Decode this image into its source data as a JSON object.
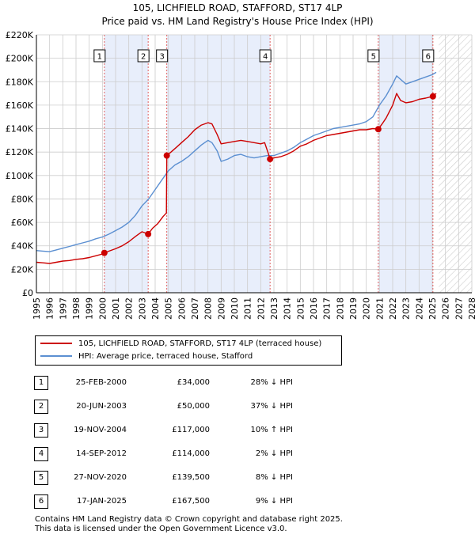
{
  "title_line1": "105, LICHFIELD ROAD, STAFFORD, ST17 4LP",
  "title_line2": "Price paid vs. HM Land Registry's House Price Index (HPI)",
  "colors": {
    "property_line": "#cc0000",
    "hpi_line": "#5b8fd1",
    "shade": "#e8eefb",
    "hatch": "#cccccc",
    "grid": "#cccccc",
    "marker_dash": "#e06060"
  },
  "legend": {
    "property_label": "105, LICHFIELD ROAD, STAFFORD, ST17 4LP (terraced house)",
    "hpi_label": "HPI: Average price, terraced house, Stafford"
  },
  "sales": [
    {
      "num": "1",
      "date": "25-FEB-2000",
      "price": "£34,000",
      "hpi": "28% ↓ HPI"
    },
    {
      "num": "2",
      "date": "20-JUN-2003",
      "price": "£50,000",
      "hpi": "37% ↓ HPI"
    },
    {
      "num": "3",
      "date": "19-NOV-2004",
      "price": "£117,000",
      "hpi": "10% ↑ HPI"
    },
    {
      "num": "4",
      "date": "14-SEP-2012",
      "price": "£114,000",
      "hpi": "2% ↓ HPI"
    },
    {
      "num": "5",
      "date": "27-NOV-2020",
      "price": "£139,500",
      "hpi": "8% ↓ HPI"
    },
    {
      "num": "6",
      "date": "17-JAN-2025",
      "price": "£167,500",
      "hpi": "9% ↓ HPI"
    }
  ],
  "footer": {
    "line1": "Contains HM Land Registry data © Crown copyright and database right 2025.",
    "line2": "This data is licensed under the Open Government Licence v3.0."
  },
  "chart_data": {
    "type": "line",
    "title": "105, LICHFIELD ROAD, STAFFORD, ST17 4LP",
    "subtitle": "Price paid vs. HM Land Registry's House Price Index (HPI)",
    "xlabel": "",
    "ylabel": "",
    "xlim": [
      1995,
      2028
    ],
    "ylim": [
      0,
      220000
    ],
    "x_ticks": [
      1995,
      1996,
      1997,
      1998,
      1999,
      2000,
      2001,
      2002,
      2003,
      2004,
      2005,
      2006,
      2007,
      2008,
      2009,
      2010,
      2011,
      2012,
      2013,
      2014,
      2015,
      2016,
      2017,
      2018,
      2019,
      2020,
      2021,
      2022,
      2023,
      2024,
      2025,
      2026,
      2027,
      2028
    ],
    "y_ticks": [
      {
        "value": 0,
        "label": "£0"
      },
      {
        "value": 20000,
        "label": "£20K"
      },
      {
        "value": 40000,
        "label": "£40K"
      },
      {
        "value": 60000,
        "label": "£60K"
      },
      {
        "value": 80000,
        "label": "£80K"
      },
      {
        "value": 100000,
        "label": "£100K"
      },
      {
        "value": 120000,
        "label": "£120K"
      },
      {
        "value": 140000,
        "label": "£140K"
      },
      {
        "value": 160000,
        "label": "£160K"
      },
      {
        "value": 180000,
        "label": "£180K"
      },
      {
        "value": 200000,
        "label": "£200K"
      },
      {
        "value": 220000,
        "label": "£220K"
      }
    ],
    "grid": true,
    "shaded_ranges": [
      [
        2000.15,
        2003.47
      ],
      [
        2004.88,
        2012.71
      ],
      [
        2020.91,
        2025.05
      ]
    ],
    "future_hatch_from": 2025.5,
    "sale_markers": [
      {
        "label": "1",
        "x": 2000.15,
        "y": 34000
      },
      {
        "label": "2",
        "x": 2003.47,
        "y": 50000
      },
      {
        "label": "3",
        "x": 2004.88,
        "y": 117000
      },
      {
        "label": "4",
        "x": 2012.71,
        "y": 114000
      },
      {
        "label": "5",
        "x": 2020.91,
        "y": 139500
      },
      {
        "label": "6",
        "x": 2025.05,
        "y": 167500
      }
    ],
    "series": [
      {
        "name": "105, LICHFIELD ROAD, STAFFORD, ST17 4LP (terraced house)",
        "x": [
          1995,
          1995.5,
          1996,
          1996.5,
          1997,
          1997.5,
          1998,
          1998.5,
          1999,
          1999.5,
          2000,
          2000.15,
          2000.5,
          2001,
          2001.5,
          2002,
          2002.5,
          2003,
          2003.47,
          2003.8,
          2004.2,
          2004.6,
          2004.85,
          2004.88,
          2005.2,
          2005.6,
          2006,
          2006.5,
          2007,
          2007.5,
          2008,
          2008.3,
          2008.7,
          2009,
          2009.5,
          2010,
          2010.5,
          2011,
          2011.5,
          2012,
          2012.3,
          2012.6,
          2012.71,
          2013,
          2013.5,
          2014,
          2014.5,
          2015,
          2015.5,
          2016,
          2016.5,
          2017,
          2017.5,
          2018,
          2018.5,
          2019,
          2019.5,
          2020,
          2020.5,
          2020.91,
          2021.2,
          2021.5,
          2022,
          2022.3,
          2022.6,
          2023,
          2023.5,
          2024,
          2024.5,
          2025.05,
          2025.3
        ],
        "values": [
          26000,
          25500,
          25000,
          26000,
          27000,
          27500,
          28500,
          29000,
          30000,
          31500,
          33000,
          34000,
          35500,
          37500,
          40000,
          43500,
          48000,
          52000,
          50000,
          55000,
          59000,
          65000,
          68000,
          117000,
          120000,
          124000,
          128000,
          133000,
          139000,
          143000,
          145000,
          144000,
          135000,
          127000,
          128000,
          129000,
          130000,
          129000,
          128000,
          127000,
          128000,
          118000,
          114000,
          115000,
          116000,
          118000,
          121000,
          125000,
          127000,
          130000,
          132000,
          134000,
          135000,
          136000,
          137000,
          138000,
          139000,
          139000,
          140000,
          139500,
          144000,
          149000,
          160000,
          170000,
          164000,
          162000,
          163000,
          165000,
          166000,
          167500,
          170000
        ]
      },
      {
        "name": "HPI: Average price, terraced house, Stafford",
        "x": [
          1995,
          1995.5,
          1996,
          1996.5,
          1997,
          1997.5,
          1998,
          1998.5,
          1999,
          1999.5,
          2000,
          2000.5,
          2001,
          2001.5,
          2002,
          2002.5,
          2003,
          2003.5,
          2004,
          2004.5,
          2005,
          2005.5,
          2006,
          2006.5,
          2007,
          2007.5,
          2008,
          2008.3,
          2008.7,
          2009,
          2009.5,
          2010,
          2010.5,
          2011,
          2011.5,
          2012,
          2012.5,
          2013,
          2013.5,
          2014,
          2014.5,
          2015,
          2015.5,
          2016,
          2016.5,
          2017,
          2017.5,
          2018,
          2018.5,
          2019,
          2019.5,
          2020,
          2020.5,
          2021,
          2021.5,
          2022,
          2022.3,
          2022.6,
          2023,
          2023.5,
          2024,
          2024.5,
          2025,
          2025.3
        ],
        "values": [
          36000,
          35500,
          35000,
          36500,
          38000,
          39500,
          41000,
          42500,
          44000,
          46000,
          47500,
          50000,
          53000,
          56000,
          60000,
          66000,
          74000,
          80000,
          88000,
          96000,
          104000,
          109000,
          112000,
          116000,
          121000,
          126000,
          130000,
          128000,
          121000,
          112000,
          114000,
          117000,
          118000,
          116000,
          115000,
          116000,
          117000,
          117000,
          119000,
          121000,
          124000,
          128000,
          131000,
          134000,
          136000,
          138000,
          140000,
          141000,
          142000,
          143000,
          144000,
          146000,
          150000,
          160000,
          168000,
          178000,
          185000,
          182000,
          178000,
          180000,
          182000,
          184000,
          186000,
          188000
        ]
      }
    ]
  }
}
